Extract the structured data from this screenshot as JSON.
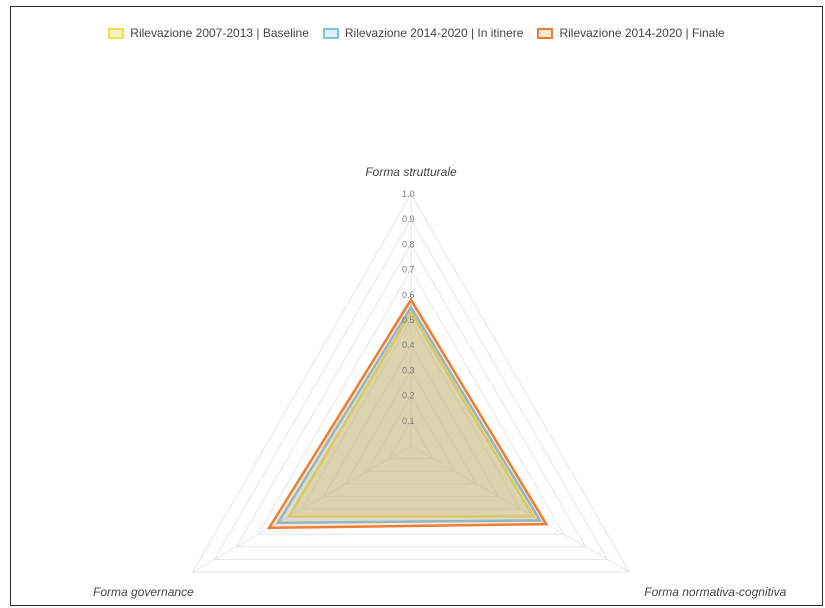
{
  "chart_data": {
    "type": "radar",
    "axes": [
      "Forma strutturale",
      "Forma normativa-cognitiva",
      "Forma governance"
    ],
    "radial_ticks": [
      "0.1",
      "0.2",
      "0.3",
      "0.4",
      "0.5",
      "0.6",
      "0.7",
      "0.8",
      "0.9",
      "1.0"
    ],
    "rmax": 1.0,
    "legend_position": "top",
    "series": [
      {
        "name": "Rilevazione 2007-2013 | Baseline",
        "values": [
          0.53,
          0.56,
          0.56
        ],
        "stroke": "#f0e04b",
        "fill": "rgba(232, 220, 86, 0.35)"
      },
      {
        "name": "Rilevazione 2014-2020 | In itinere",
        "values": [
          0.55,
          0.59,
          0.61
        ],
        "stroke": "#7ec4e0",
        "fill": "rgba(126, 196, 224, 0.25)"
      },
      {
        "name": "Rilevazione 2014-2020 | Finale",
        "values": [
          0.58,
          0.62,
          0.65
        ],
        "stroke": "#ee7e33",
        "fill": "rgba(238, 126, 51, 0.18)"
      }
    ]
  }
}
